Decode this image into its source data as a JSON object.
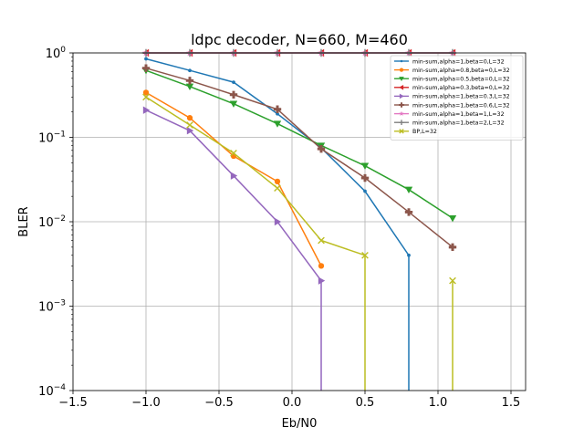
{
  "chart_data": {
    "type": "line",
    "title": "ldpc decoder, N=660, M=460",
    "xlabel": "Eb/N0",
    "ylabel": "BLER",
    "xlim": [
      -1.5,
      1.6
    ],
    "ylim": [
      0.0001,
      1
    ],
    "yscale": "log",
    "grid": true,
    "legend_position": "top-right",
    "xticks": [
      -1.5,
      -1.0,
      -0.5,
      0.0,
      0.5,
      1.0,
      1.5
    ],
    "xtick_labels": [
      "−1.5",
      "−1.0",
      "−0.5",
      "0.0",
      "0.5",
      "1.0",
      "1.5"
    ],
    "yticks": [
      0.0001,
      0.001,
      0.01,
      0.1,
      1
    ],
    "ytick_labels": [
      {
        "base": "10",
        "exp": "−4"
      },
      {
        "base": "10",
        "exp": "−3"
      },
      {
        "base": "10",
        "exp": "−2"
      },
      {
        "base": "10",
        "exp": "−1"
      },
      {
        "base": "10",
        "exp": "0"
      }
    ],
    "series": [
      {
        "name": "min-sum,alpha=1,beta=0,L=32",
        "color": "#1f77b4",
        "marker": "dot",
        "x": [
          -1.0,
          -0.7,
          -0.4,
          -0.1,
          0.2,
          0.5,
          0.8,
          0.8
        ],
        "y": [
          0.85,
          0.62,
          0.45,
          0.19,
          0.075,
          0.023,
          0.004,
          0.0001
        ]
      },
      {
        "name": "min-sum,alpha=0.8,beta=0,L=32",
        "color": "#ff7f0e",
        "marker": "circle",
        "x": [
          -1.0,
          -0.7,
          -0.4,
          -0.1,
          0.2
        ],
        "y": [
          0.34,
          0.17,
          0.06,
          0.03,
          0.003
        ]
      },
      {
        "name": "min-sum,alpha=0.5,beta=0,L=32",
        "color": "#2ca02c",
        "marker": "triangle-down",
        "x": [
          -1.0,
          -0.7,
          -0.4,
          -0.1,
          0.2,
          0.5,
          0.8,
          1.1
        ],
        "y": [
          0.62,
          0.4,
          0.25,
          0.145,
          0.08,
          0.046,
          0.024,
          0.011
        ]
      },
      {
        "name": "min-sum,alpha=0.3,beta=0,L=32",
        "color": "#d62728",
        "marker": "triangle-left",
        "x": [
          -1.0,
          -0.7,
          -0.4,
          -0.1,
          0.2,
          0.5,
          0.8,
          1.1
        ],
        "y": [
          1,
          1,
          1,
          1,
          1,
          1,
          1,
          1
        ]
      },
      {
        "name": "min-sum,alpha=1,beta=0.3,L=32",
        "color": "#9467bd",
        "marker": "triangle-right",
        "x": [
          -1.0,
          -0.7,
          -0.4,
          -0.1,
          0.2,
          0.2
        ],
        "y": [
          0.21,
          0.12,
          0.035,
          0.01,
          0.002,
          0.0001
        ]
      },
      {
        "name": "min-sum,alpha=1,beta=0.6,L=32",
        "color": "#8c564b",
        "marker": "plus",
        "x": [
          -1.0,
          -0.7,
          -0.4,
          -0.1,
          0.2,
          0.5,
          0.8,
          1.1
        ],
        "y": [
          0.66,
          0.47,
          0.32,
          0.215,
          0.073,
          0.033,
          0.013,
          0.005
        ]
      },
      {
        "name": "min-sum,alpha=1,beta=1,L=32",
        "color": "#e377c2",
        "marker": "star",
        "x": [
          -1.0,
          -0.7,
          -0.4,
          -0.1,
          0.2,
          0.5,
          0.8,
          1.1
        ],
        "y": [
          1,
          1,
          1,
          1,
          1,
          1,
          1,
          1
        ]
      },
      {
        "name": "min-sum,alpha=1,beta=2,L=32",
        "color": "#7f7f7f",
        "marker": "thin-plus",
        "x": [
          -1.0,
          -0.7,
          -0.4,
          -0.1,
          0.2,
          0.5,
          0.8,
          1.1
        ],
        "y": [
          1,
          1,
          1,
          1,
          1,
          1,
          1,
          1
        ]
      },
      {
        "name": "BP,L=32",
        "color": "#bcbd22",
        "marker": "x",
        "x": [
          -1.0,
          -0.7,
          -0.4,
          -0.1,
          0.2,
          0.5,
          0.5,
          0.5,
          1.1,
          1.1
        ],
        "y": [
          0.3,
          0.14,
          0.065,
          0.025,
          0.006,
          0.004,
          0.0001,
          null,
          0.0001,
          0.002
        ]
      }
    ]
  }
}
